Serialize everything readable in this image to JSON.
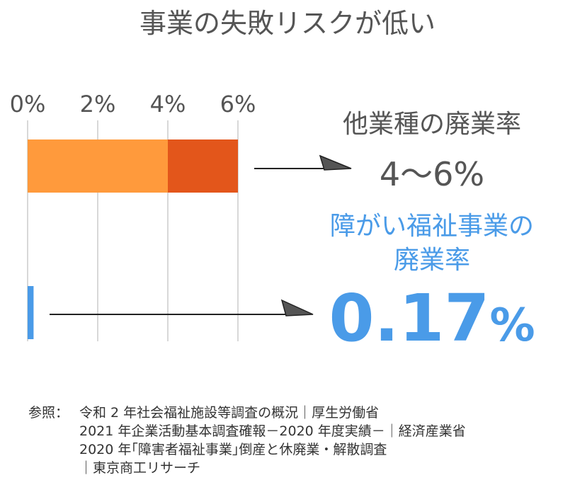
{
  "title": "事業の失敗リスクが低い",
  "chart_data": {
    "type": "bar",
    "orientation": "horizontal",
    "xlim": [
      0,
      6
    ],
    "tick_labels": [
      "0%",
      "2%",
      "4%",
      "6%"
    ],
    "tick_values": [
      0,
      2,
      4,
      6
    ],
    "grid": true,
    "bars": [
      {
        "category": "他業種の廃業率",
        "segments": [
          {
            "from": 0,
            "to": 4,
            "color": "#FF9A3C"
          },
          {
            "from": 4,
            "to": 6,
            "color": "#E3561B"
          }
        ]
      },
      {
        "category": "障がい福祉事業の廃業率",
        "segments": [
          {
            "from": 0,
            "to": 0.17,
            "color": "#4A9BE8"
          }
        ]
      }
    ],
    "annotations": {
      "other": {
        "label": "他業種の廃業率",
        "value": "4〜6%"
      },
      "welfare": {
        "label_line1": "障がい福祉事業の",
        "label_line2": "廃業率",
        "value": "0.17",
        "unit": "%"
      }
    }
  },
  "sources": {
    "prefix": "参照：",
    "lines": [
      "令和 2 年社会福祉施設等調査の概況｜厚生労働省",
      "2021 年企業活動基本調査確報－2020 年度実績－｜経済産業省",
      "2020 年｢障害者福祉事業｣倒産と休廃業・解散調査",
      "｜東京商工リサーチ"
    ]
  }
}
